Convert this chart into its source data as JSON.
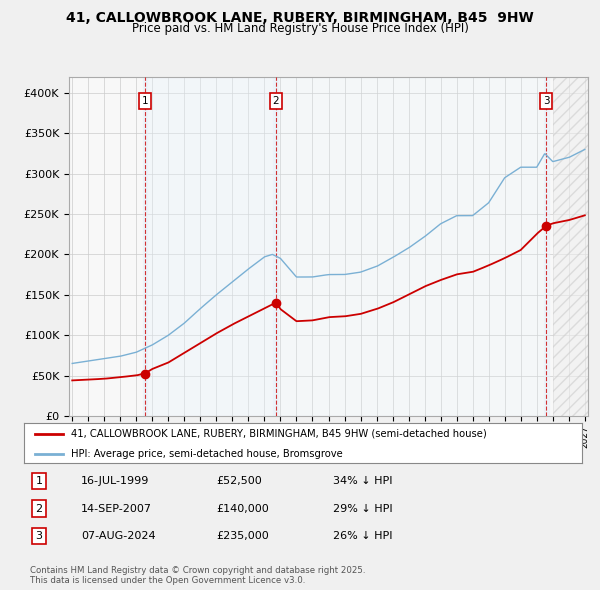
{
  "title": "41, CALLOWBROOK LANE, RUBERY, BIRMINGHAM, B45  9HW",
  "subtitle": "Price paid vs. HM Land Registry's House Price Index (HPI)",
  "legend_line1": "41, CALLOWBROOK LANE, RUBERY, BIRMINGHAM, B45 9HW (semi-detached house)",
  "legend_line2": "HPI: Average price, semi-detached house, Bromsgrove",
  "sale_events": [
    {
      "num": 1,
      "date": "16-JUL-1999",
      "price": 52500,
      "year": 1999.54
    },
    {
      "num": 2,
      "date": "14-SEP-2007",
      "price": 140000,
      "year": 2007.71
    },
    {
      "num": 3,
      "date": "07-AUG-2024",
      "price": 235000,
      "year": 2024.6
    }
  ],
  "table_rows": [
    {
      "num": "1",
      "date": "16-JUL-1999",
      "price": "£52,500",
      "note": "34% ↓ HPI"
    },
    {
      "num": "2",
      "date": "14-SEP-2007",
      "price": "£140,000",
      "note": "29% ↓ HPI"
    },
    {
      "num": "3",
      "date": "07-AUG-2024",
      "price": "£235,000",
      "note": "26% ↓ HPI"
    }
  ],
  "footer": "Contains HM Land Registry data © Crown copyright and database right 2025.\nThis data is licensed under the Open Government Licence v3.0.",
  "red_color": "#cc0000",
  "blue_color": "#7ab0d4",
  "shade_color": "#ddeeff",
  "hatch_color": "#dddddd",
  "ylim": [
    0,
    420000
  ],
  "yticks": [
    0,
    50000,
    100000,
    150000,
    200000,
    250000,
    300000,
    350000,
    400000
  ],
  "ytick_labels": [
    "£0",
    "£50K",
    "£100K",
    "£150K",
    "£200K",
    "£250K",
    "£300K",
    "£350K",
    "£400K"
  ],
  "xlim_start": 1994.8,
  "xlim_end": 2027.2,
  "hatch_start": 2025.0,
  "bg_color": "#f0f0f0",
  "plot_bg": "#f0f0f0",
  "grid_color": "#cccccc",
  "hpi_anchors_x": [
    1995,
    1996,
    1997,
    1998,
    1999,
    2000,
    2001,
    2002,
    2003,
    2004,
    2005,
    2006,
    2007,
    2007.5,
    2008,
    2009,
    2010,
    2011,
    2012,
    2013,
    2014,
    2015,
    2016,
    2017,
    2018,
    2019,
    2020,
    2021,
    2022,
    2023,
    2024,
    2024.5,
    2025,
    2026,
    2027
  ],
  "hpi_anchors_y": [
    65000,
    68000,
    71000,
    74000,
    79000,
    88000,
    100000,
    115000,
    133000,
    150000,
    166000,
    182000,
    197000,
    200000,
    195000,
    172000,
    172000,
    175000,
    175000,
    178000,
    185000,
    196000,
    208000,
    222000,
    238000,
    248000,
    248000,
    264000,
    295000,
    308000,
    308000,
    325000,
    315000,
    320000,
    330000
  ],
  "red_anchors_x": [
    1995,
    1996,
    1997,
    1998,
    1999,
    1999.54,
    2000,
    2001,
    2002,
    2003,
    2004,
    2005,
    2006,
    2007,
    2007.71,
    2008,
    2009,
    2010,
    2011,
    2012,
    2013,
    2014,
    2015,
    2016,
    2017,
    2018,
    2019,
    2020,
    2021,
    2022,
    2023,
    2024,
    2024.6,
    2025,
    2026,
    2027
  ],
  "red_anchors_y": [
    44000,
    45000,
    46000,
    48000,
    50000,
    52500,
    58000,
    66000,
    78000,
    90000,
    102000,
    113000,
    123000,
    133000,
    140000,
    132000,
    117000,
    118000,
    122000,
    123000,
    126000,
    132000,
    140000,
    150000,
    160000,
    168000,
    175000,
    178000,
    186000,
    195000,
    205000,
    225000,
    235000,
    238000,
    242000,
    248000
  ]
}
